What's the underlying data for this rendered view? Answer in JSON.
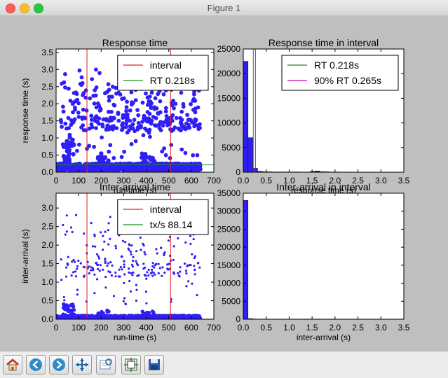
{
  "window": {
    "title": "Figure 1"
  },
  "toolbar": {
    "buttons": [
      {
        "name": "home-button",
        "icon": "home-icon"
      },
      {
        "name": "back-button",
        "icon": "arrow-left-icon"
      },
      {
        "name": "forward-button",
        "icon": "arrow-right-icon"
      },
      {
        "name": "pan-button",
        "icon": "move-icon"
      },
      {
        "name": "zoom-button",
        "icon": "zoom-rect-icon"
      },
      {
        "name": "subplots-button",
        "icon": "subplots-icon"
      },
      {
        "name": "save-button",
        "icon": "floppy-disk-icon"
      }
    ]
  },
  "colors": {
    "points": "#2f1ef5",
    "interval": "#e02020",
    "rt": "#1a8c1a",
    "p90": "#bf00bf",
    "bars": "#2f1ef5"
  },
  "chart_data": [
    {
      "id": "response-time",
      "type": "scatter",
      "title": "Response time",
      "xlabel": "run-time (s)",
      "ylabel": "response time (s)",
      "xlim": [
        0,
        700
      ],
      "ylim": [
        0,
        3.6
      ],
      "xticks": [
        "0",
        "100",
        "200",
        "300",
        "400",
        "500",
        "600",
        "700"
      ],
      "yticks": [
        "0.0",
        "0.5",
        "1.0",
        "1.5",
        "2.0",
        "2.5",
        "3.0",
        "3.5"
      ],
      "legend": [
        {
          "label": "interval",
          "color": "#e02020"
        },
        {
          "label": "RT 0.218s",
          "color": "#1a8c1a"
        }
      ],
      "vlines": [
        137,
        508
      ],
      "hline": 0.218
    },
    {
      "id": "response-time-interval",
      "type": "bar",
      "title": "Response time in interval",
      "xlabel": "response time (s)",
      "xlim": [
        0,
        3.5
      ],
      "ylim": [
        0,
        25000
      ],
      "xticks": [
        "0.0",
        "0.5",
        "1.0",
        "1.5",
        "2.0",
        "2.5",
        "3.0",
        "3.5"
      ],
      "yticks": [
        "0",
        "5000",
        "10000",
        "15000",
        "20000",
        "25000"
      ],
      "legend": [
        {
          "label": "RT 0.218s",
          "color": "#1a8c1a"
        },
        {
          "label": "90% RT 0.265s",
          "color": "#bf00bf"
        }
      ],
      "bin_width": 0.104,
      "values": [
        22500,
        7000,
        800,
        200,
        100,
        80,
        60,
        50,
        50,
        60,
        50,
        50,
        40,
        40,
        150,
        250,
        120,
        80,
        60,
        50,
        40,
        40,
        30,
        30,
        20,
        20,
        20,
        20,
        10,
        10,
        10,
        10
      ],
      "vlines": [
        {
          "x": 0.218,
          "color": "#1a8c1a"
        },
        {
          "x": 0.265,
          "color": "#bf00bf"
        }
      ]
    },
    {
      "id": "inter-arrival",
      "type": "scatter",
      "title": "Inter-arrival time",
      "xlabel": "run-time (s)",
      "ylabel": "inter-arrival (s)",
      "xlim": [
        0,
        700
      ],
      "ylim": [
        0,
        3.4
      ],
      "xticks": [
        "0",
        "100",
        "200",
        "300",
        "400",
        "500",
        "600",
        "700"
      ],
      "yticks": [
        "0.0",
        "0.5",
        "1.0",
        "1.5",
        "2.0",
        "2.5",
        "3.0"
      ],
      "legend": [
        {
          "label": "interval",
          "color": "#e02020"
        },
        {
          "label": "tx/s 88.14",
          "color": "#1a8c1a"
        }
      ],
      "vlines": [
        137,
        508
      ]
    },
    {
      "id": "inter-arrival-interval",
      "type": "bar",
      "title": "Inter-arrival in interval",
      "xlabel": "inter-arrival (s)",
      "xlim": [
        0,
        3.5
      ],
      "ylim": [
        0,
        35000
      ],
      "xticks": [
        "0.0",
        "0.5",
        "1.0",
        "1.5",
        "2.0",
        "2.5",
        "3.0",
        "3.5"
      ],
      "yticks": [
        "0",
        "5000",
        "10000",
        "15000",
        "20000",
        "25000",
        "30000",
        "35000"
      ],
      "bin_width": 0.104,
      "values": [
        33000,
        150,
        60,
        30,
        20,
        15,
        10,
        10,
        8,
        8,
        6,
        5,
        5,
        4,
        4,
        3,
        3,
        3,
        2,
        2,
        2,
        2,
        2,
        2,
        1,
        1,
        1,
        1,
        1,
        1,
        1,
        1
      ]
    }
  ]
}
